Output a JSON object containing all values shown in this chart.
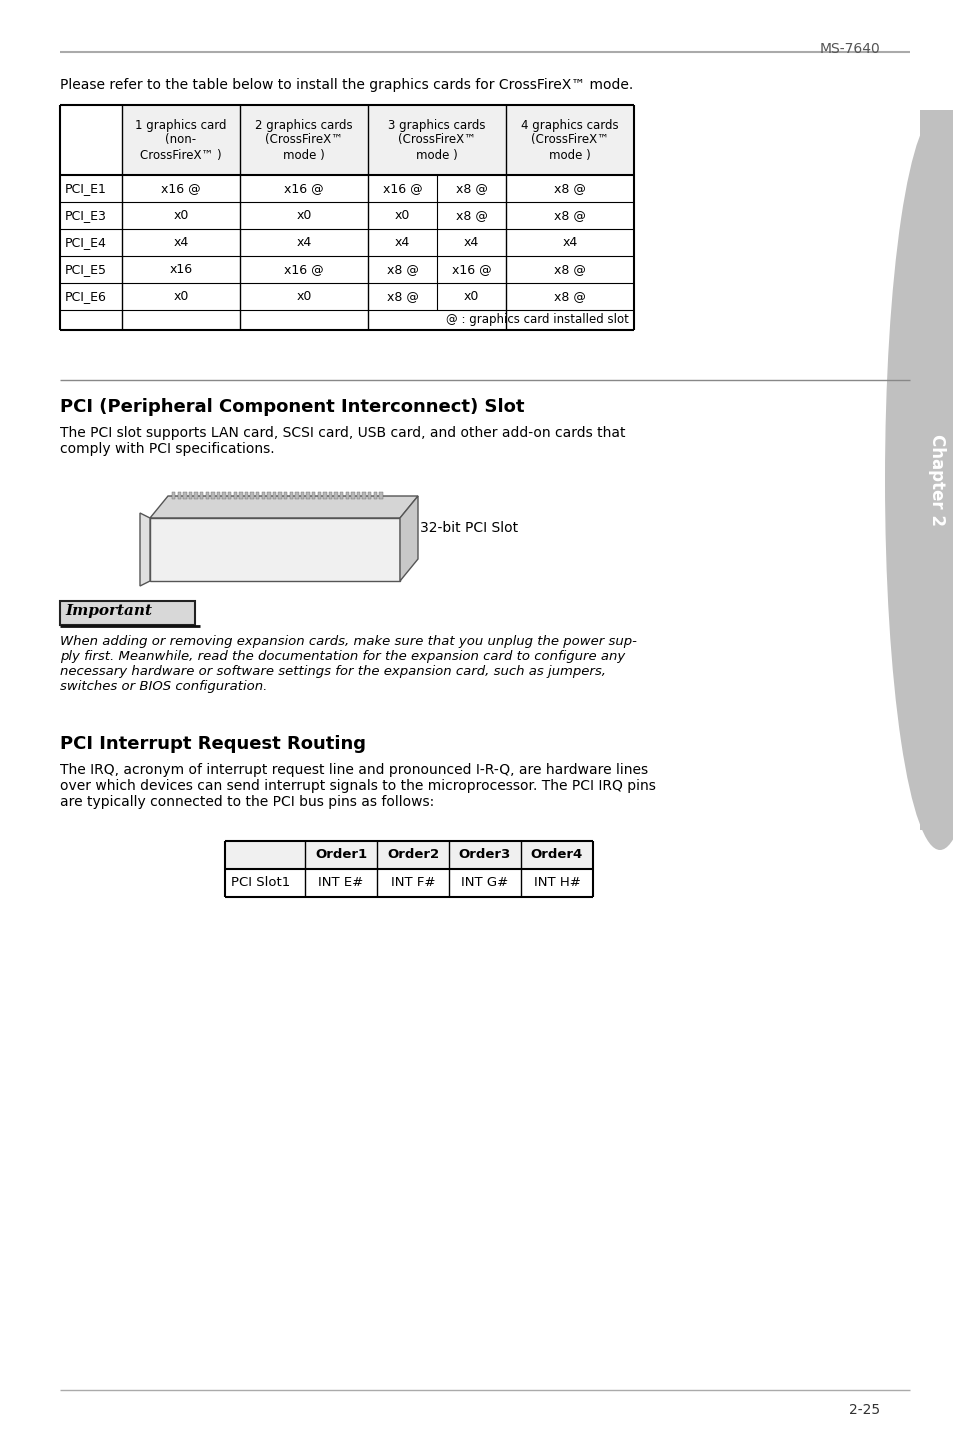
{
  "page_header": "MS-7640",
  "intro_text": "Please refer to the table below to install the graphics cards for CrossFireX™ mode.",
  "table1_col_headers": [
    "",
    "1 graphics card\n(non-\nCrossFireX™ )",
    "2 graphics cards\n(CrossFireX™\nmode )",
    "3 graphics cards\n(CrossFireX™\nmode )",
    "4 graphics cards\n(CrossFireX™\nmode )"
  ],
  "table1_rows": [
    [
      "PCI_E1",
      "x16 @",
      "x16 @",
      "x16 @   x8 @",
      "x8 @"
    ],
    [
      "PCI_E3",
      "x0",
      "x0",
      "x0   x8 @",
      "x8 @"
    ],
    [
      "PCI_E4",
      "x4",
      "x4",
      "x4   x4",
      "x4"
    ],
    [
      "PCI_E5",
      "x16",
      "x16 @",
      "x8 @   x16 @",
      "x8 @"
    ],
    [
      "PCI_E6",
      "x0",
      "x0",
      "x8 @   x0",
      "x8 @"
    ]
  ],
  "table1_footer": "@ : graphics card installed slot",
  "section1_title": "PCI (Peripheral Component Interconnect) Slot",
  "section1_body": "The PCI slot supports LAN card, SCSI card, USB card, and other add-on cards that\ncomply with PCI specifications.",
  "pci_slot_label": "32-bit PCI Slot",
  "important_label": "Important",
  "important_body": "When adding or removing expansion cards, make sure that you unplug the power sup-\nply first. Meanwhile, read the documentation for the expansion card to configure any\nnecessary hardware or software settings for the expansion card, such as jumpers,\nswitches or BIOS configuration.",
  "section2_title": "PCI Interrupt Request Routing",
  "section2_body": "The IRQ, acronym of interrupt request line and pronounced I-R-Q, are hardware lines\nover which devices can send interrupt signals to the microprocessor. The PCI IRQ pins\nare typically connected to the PCI bus pins as follows:",
  "table2_col_headers": [
    "",
    "Order1",
    "Order2",
    "Order3",
    "Order4"
  ],
  "table2_rows": [
    [
      "PCI Slot1",
      "INT E#",
      "INT F#",
      "INT G#",
      "INT H#"
    ]
  ],
  "page_number": "2-25",
  "chapter_label": "Chapter 2",
  "bg_color": "#ffffff",
  "text_color": "#000000",
  "sidebar_gray": "#c0c0c0",
  "header_text_color": "#444444"
}
